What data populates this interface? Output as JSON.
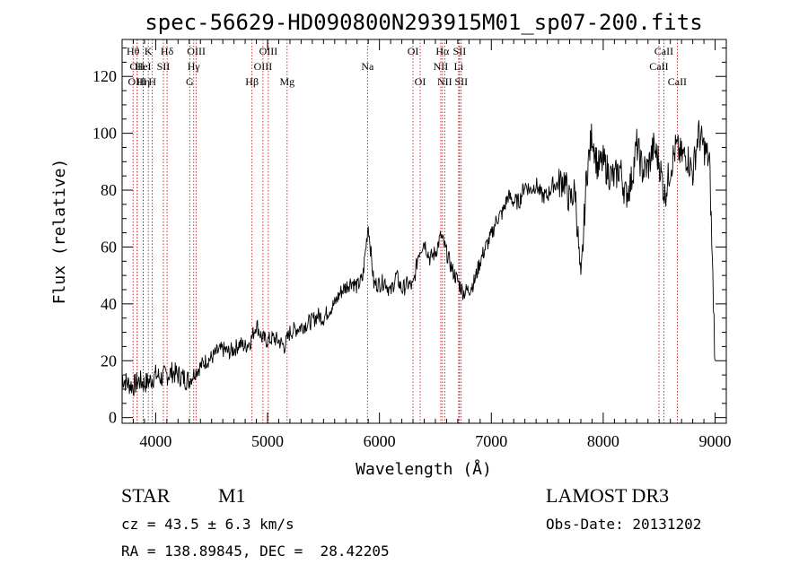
{
  "chart_data": {
    "type": "line",
    "title": "spec-56629-HD090800N293915M01_sp07-200.fits",
    "xlabel": "Wavelength (Å)",
    "ylabel": "Flux (relative)",
    "xlim": [
      3700,
      9100
    ],
    "ylim": [
      -2,
      133
    ],
    "xticks": [
      4000,
      5000,
      6000,
      7000,
      8000,
      9000
    ],
    "yticks": [
      0,
      20,
      40,
      60,
      80,
      100,
      120
    ],
    "series": [
      {
        "name": "spectrum",
        "x": [
          3700,
          3750,
          3800,
          3850,
          3900,
          3950,
          4000,
          4050,
          4100,
          4150,
          4200,
          4250,
          4300,
          4350,
          4400,
          4450,
          4500,
          4550,
          4600,
          4650,
          4700,
          4750,
          4800,
          4850,
          4900,
          4950,
          5000,
          5050,
          5100,
          5150,
          5200,
          5250,
          5300,
          5350,
          5400,
          5450,
          5500,
          5550,
          5600,
          5650,
          5700,
          5750,
          5800,
          5850,
          5900,
          5950,
          6000,
          6050,
          6100,
          6150,
          6200,
          6250,
          6300,
          6350,
          6400,
          6450,
          6500,
          6550,
          6600,
          6650,
          6700,
          6750,
          6800,
          6850,
          6900,
          6950,
          7000,
          7050,
          7100,
          7150,
          7200,
          7250,
          7300,
          7350,
          7400,
          7450,
          7500,
          7550,
          7600,
          7650,
          7700,
          7750,
          7800,
          7850,
          7900,
          7950,
          8000,
          8050,
          8100,
          8150,
          8200,
          8250,
          8300,
          8350,
          8400,
          8450,
          8500,
          8550,
          8600,
          8650,
          8700,
          8750,
          8800,
          8850,
          8900,
          8950,
          9000
        ],
        "y": [
          14,
          12,
          11,
          13,
          12,
          13,
          15,
          14,
          15,
          16,
          15,
          14,
          13,
          16,
          18,
          20,
          21,
          23,
          24,
          23,
          24,
          26,
          25,
          27,
          33,
          28,
          27,
          28,
          27,
          25,
          30,
          31,
          32,
          33,
          34,
          36,
          35,
          38,
          40,
          44,
          46,
          48,
          46,
          49,
          68,
          47,
          47,
          48,
          44,
          50,
          45,
          47,
          46,
          58,
          62,
          56,
          58,
          64,
          58,
          52,
          48,
          44,
          45,
          48,
          55,
          60,
          64,
          70,
          72,
          78,
          76,
          76,
          82,
          80,
          82,
          78,
          78,
          82,
          82,
          84,
          76,
          80,
          46,
          85,
          100,
          88,
          90,
          86,
          84,
          88,
          78,
          83,
          96,
          87,
          88,
          95,
          90,
          78,
          88,
          95,
          92,
          92,
          86,
          100,
          95,
          90,
          20
        ]
      }
    ],
    "lines": [
      {
        "x": 3798,
        "label": "Hθ",
        "row": 0
      },
      {
        "x": 3835,
        "label": "OII",
        "row": 1
      },
      {
        "x": 3835,
        "label": "OIII",
        "row": 2
      },
      {
        "x": 3889,
        "label": "Hη",
        "row": 2
      },
      {
        "x": 3934,
        "label": "K",
        "row": 0
      },
      {
        "x": 3970,
        "label": "H",
        "row": 2
      },
      {
        "x": 3889,
        "label": "HeI",
        "row": 1
      },
      {
        "x": 4069,
        "label": "SII",
        "row": 1
      },
      {
        "x": 4102,
        "label": "Hδ",
        "row": 0
      },
      {
        "x": 4304,
        "label": "G",
        "row": 2
      },
      {
        "x": 4340,
        "label": "Hγ",
        "row": 1
      },
      {
        "x": 4363,
        "label": "OIII",
        "row": 0
      },
      {
        "x": 4861,
        "label": "Hβ",
        "row": 2
      },
      {
        "x": 4959,
        "label": "OIII",
        "row": 1
      },
      {
        "x": 5007,
        "label": "OIII",
        "row": 0
      },
      {
        "x": 5175,
        "label": "Mg",
        "row": 2
      },
      {
        "x": 5893,
        "label": "Na",
        "row": 1
      },
      {
        "x": 6300,
        "label": "OI",
        "row": 0
      },
      {
        "x": 6364,
        "label": "OI",
        "row": 2
      },
      {
        "x": 6548,
        "label": "NII",
        "row": 1
      },
      {
        "x": 6563,
        "label": "Hα",
        "row": 0
      },
      {
        "x": 6583,
        "label": "NII",
        "row": 2
      },
      {
        "x": 6708,
        "label": "Li",
        "row": 1
      },
      {
        "x": 6716,
        "label": "SII",
        "row": 0
      },
      {
        "x": 6731,
        "label": "SII",
        "row": 2
      },
      {
        "x": 8498,
        "label": "CaII",
        "row": 1
      },
      {
        "x": 8542,
        "label": "CaII",
        "row": 0
      },
      {
        "x": 8662,
        "label": "CaII",
        "row": 2
      }
    ]
  },
  "info": {
    "class": "STAR",
    "subclass": "M1",
    "survey": "LAMOST DR3",
    "cz": "cz = 43.5 ± 6.3 km/s",
    "obs_date": "Obs-Date: 20131202",
    "coords": "RA = 138.89845, DEC =  28.42205"
  },
  "colors": {
    "line_marker": "#c00000",
    "spectrum": "#000000"
  }
}
